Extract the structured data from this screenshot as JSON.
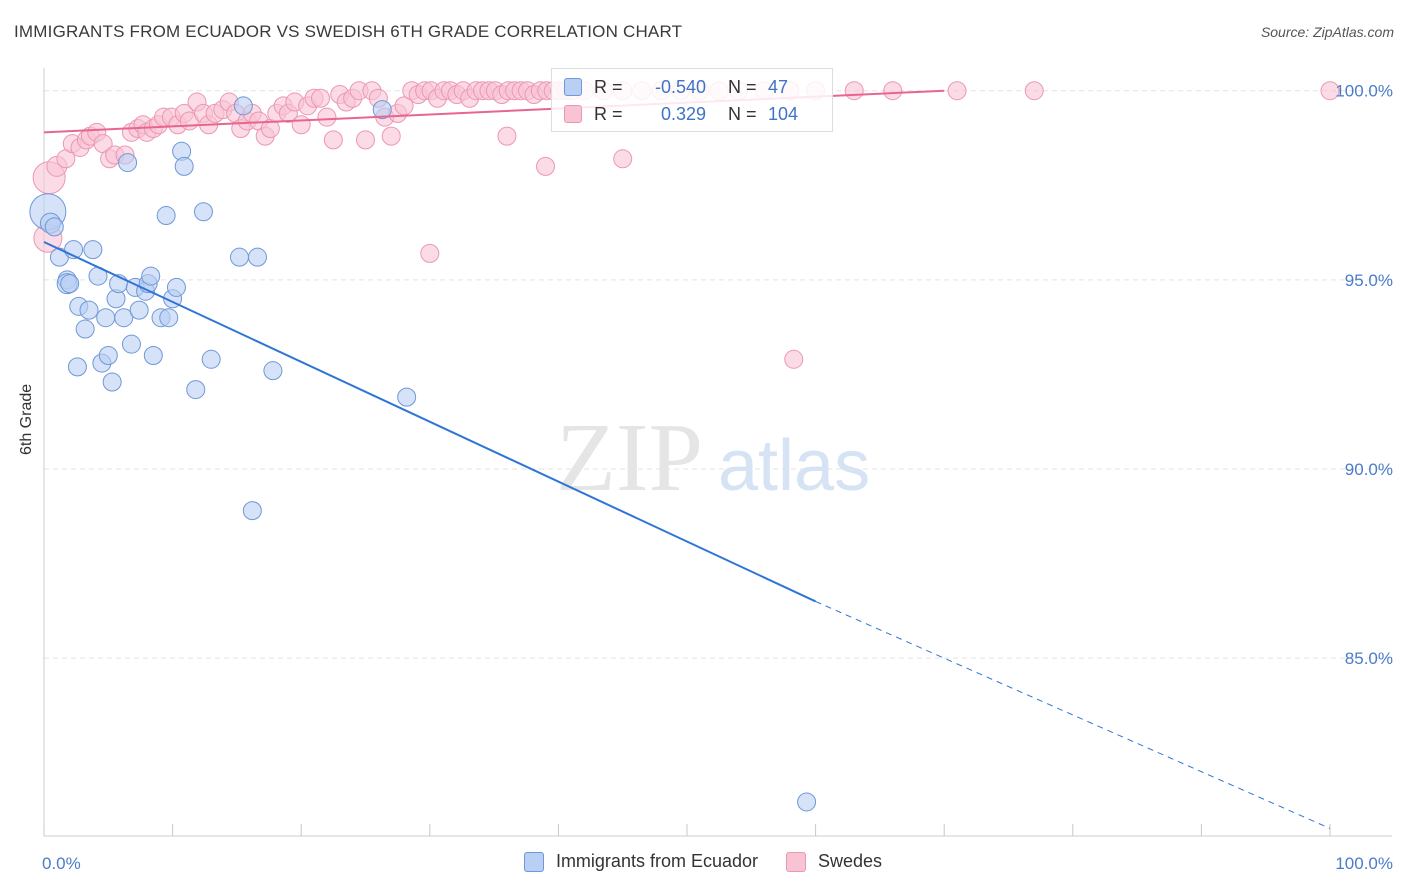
{
  "title": "IMMIGRANTS FROM ECUADOR VS SWEDISH 6TH GRADE CORRELATION CHART",
  "source": "Source: ZipAtlas.com",
  "watermark": {
    "zip": "ZIP",
    "atlas": "atlas"
  },
  "colors": {
    "blue_fill": "#b9cff3",
    "blue_stroke": "#6f98d8",
    "blue_line": "#2f75d6",
    "pink_fill": "#f8c3d3",
    "pink_stroke": "#ec97b2",
    "pink_line": "#e8668e",
    "grid": "#e3e3e3",
    "axis_text": "#4a7cc9"
  },
  "legend": {
    "rows": [
      {
        "r_label": "R =",
        "r_value": "-0.540",
        "n_label": "N =",
        "n_value": "47"
      },
      {
        "r_label": "R =",
        "r_value": "0.329",
        "n_label": "N =",
        "n_value": "104"
      }
    ]
  },
  "chart_data": {
    "type": "scatter",
    "xlabel": "",
    "ylabel": "6th Grade",
    "xlim": [
      0,
      100
    ],
    "ylim": [
      80.3,
      100.6
    ],
    "x_tick_labels": [
      {
        "value": 0,
        "label": "0.0%"
      },
      {
        "value": 100,
        "label": "100.0%"
      }
    ],
    "y_ticks": [
      {
        "value": 100,
        "label": "100.0%"
      },
      {
        "value": 95,
        "label": "95.0%"
      },
      {
        "value": 90,
        "label": "90.0%"
      },
      {
        "value": 85,
        "label": "85.0%"
      }
    ],
    "series": [
      {
        "name": "Immigrants from Ecuador",
        "color": "blue",
        "trend": {
          "x0": 0,
          "y0": 96.0,
          "x1": 60,
          "y1": 86.5,
          "dash_to_x": 100,
          "dash_to_y": 80.5
        },
        "points": [
          [
            0.3,
            96.8,
            18
          ],
          [
            0.5,
            96.5,
            10
          ],
          [
            1.2,
            95.6,
            9
          ],
          [
            1.8,
            95.0,
            9
          ],
          [
            1.8,
            94.9,
            10
          ],
          [
            2.3,
            95.8,
            9
          ],
          [
            2.6,
            92.7,
            9
          ],
          [
            2.7,
            94.3,
            9
          ],
          [
            3.2,
            93.7,
            9
          ],
          [
            3.5,
            94.2,
            9
          ],
          [
            3.8,
            95.8,
            9
          ],
          [
            4.2,
            95.1,
            9
          ],
          [
            4.5,
            92.8,
            9
          ],
          [
            4.8,
            94.0,
            9
          ],
          [
            5.0,
            93.0,
            9
          ],
          [
            5.3,
            92.3,
            9
          ],
          [
            5.6,
            94.5,
            9
          ],
          [
            5.8,
            94.9,
            9
          ],
          [
            6.2,
            94.0,
            9
          ],
          [
            6.5,
            98.1,
            9
          ],
          [
            6.8,
            93.3,
            9
          ],
          [
            7.1,
            94.8,
            9
          ],
          [
            7.4,
            94.2,
            9
          ],
          [
            7.9,
            94.7,
            9
          ],
          [
            8.1,
            94.9,
            9
          ],
          [
            8.3,
            95.1,
            9
          ],
          [
            8.5,
            93.0,
            9
          ],
          [
            9.1,
            94.0,
            9
          ],
          [
            9.5,
            96.7,
            9
          ],
          [
            9.7,
            94.0,
            9
          ],
          [
            10.0,
            94.5,
            9
          ],
          [
            10.3,
            94.8,
            9
          ],
          [
            10.7,
            98.4,
            9
          ],
          [
            10.9,
            98.0,
            9
          ],
          [
            11.8,
            92.1,
            9
          ],
          [
            12.4,
            96.8,
            9
          ],
          [
            13.0,
            92.9,
            9
          ],
          [
            15.2,
            95.6,
            9
          ],
          [
            15.5,
            99.6,
            9
          ],
          [
            16.2,
            88.9,
            9
          ],
          [
            16.6,
            95.6,
            9
          ],
          [
            17.8,
            92.6,
            9
          ],
          [
            26.3,
            99.5,
            9
          ],
          [
            28.2,
            91.9,
            9
          ],
          [
            59.3,
            81.2,
            9
          ],
          [
            0.8,
            96.4,
            9
          ],
          [
            2.0,
            94.9,
            9
          ]
        ]
      },
      {
        "name": "Swedes",
        "color": "pink",
        "trend": {
          "x0": 0,
          "y0": 98.9,
          "x1": 70,
          "y1": 100.0
        },
        "points": [
          [
            0.3,
            96.1,
            14
          ],
          [
            0.4,
            97.7,
            16
          ],
          [
            1.0,
            98.0,
            10
          ],
          [
            1.7,
            98.2,
            9
          ],
          [
            2.2,
            98.6,
            9
          ],
          [
            2.8,
            98.5,
            9
          ],
          [
            3.3,
            98.7,
            9
          ],
          [
            3.6,
            98.8,
            9
          ],
          [
            4.1,
            98.9,
            9
          ],
          [
            4.6,
            98.6,
            9
          ],
          [
            5.1,
            98.2,
            9
          ],
          [
            5.5,
            98.3,
            9
          ],
          [
            6.3,
            98.3,
            9
          ],
          [
            6.8,
            98.9,
            9
          ],
          [
            7.3,
            99.0,
            9
          ],
          [
            7.7,
            99.1,
            9
          ],
          [
            8.0,
            98.9,
            9
          ],
          [
            8.5,
            99.0,
            9
          ],
          [
            8.9,
            99.1,
            9
          ],
          [
            9.3,
            99.3,
            9
          ],
          [
            9.9,
            99.3,
            9
          ],
          [
            10.4,
            99.1,
            9
          ],
          [
            10.9,
            99.4,
            9
          ],
          [
            11.3,
            99.2,
            9
          ],
          [
            11.9,
            99.7,
            9
          ],
          [
            12.4,
            99.4,
            9
          ],
          [
            12.8,
            99.1,
            9
          ],
          [
            13.3,
            99.4,
            9
          ],
          [
            13.9,
            99.5,
            9
          ],
          [
            14.4,
            99.7,
            9
          ],
          [
            14.9,
            99.4,
            9
          ],
          [
            15.3,
            99.0,
            9
          ],
          [
            15.8,
            99.2,
            9
          ],
          [
            16.2,
            99.4,
            9
          ],
          [
            16.7,
            99.2,
            9
          ],
          [
            17.2,
            98.8,
            9
          ],
          [
            17.6,
            99.0,
            9
          ],
          [
            18.1,
            99.4,
            9
          ],
          [
            18.6,
            99.6,
            9
          ],
          [
            19.0,
            99.4,
            9
          ],
          [
            19.5,
            99.7,
            9
          ],
          [
            20.0,
            99.1,
            9
          ],
          [
            20.5,
            99.6,
            9
          ],
          [
            21.0,
            99.8,
            9
          ],
          [
            21.5,
            99.8,
            9
          ],
          [
            22.0,
            99.3,
            9
          ],
          [
            22.5,
            98.7,
            9
          ],
          [
            23.0,
            99.9,
            9
          ],
          [
            23.5,
            99.7,
            9
          ],
          [
            24.0,
            99.8,
            9
          ],
          [
            24.5,
            100.0,
            9
          ],
          [
            25.0,
            98.7,
            9
          ],
          [
            25.5,
            100.0,
            9
          ],
          [
            26.0,
            99.8,
            9
          ],
          [
            26.5,
            99.3,
            9
          ],
          [
            27.0,
            98.8,
            9
          ],
          [
            27.5,
            99.4,
            9
          ],
          [
            28.0,
            99.6,
            9
          ],
          [
            28.6,
            100.0,
            9
          ],
          [
            29.1,
            99.9,
            9
          ],
          [
            29.6,
            100.0,
            9
          ],
          [
            30.1,
            100.0,
            9
          ],
          [
            30.6,
            99.8,
            9
          ],
          [
            31.1,
            100.0,
            9
          ],
          [
            31.6,
            100.0,
            9
          ],
          [
            32.1,
            99.9,
            9
          ],
          [
            32.6,
            100.0,
            9
          ],
          [
            33.1,
            99.8,
            9
          ],
          [
            33.6,
            100.0,
            9
          ],
          [
            34.1,
            100.0,
            9
          ],
          [
            34.6,
            100.0,
            9
          ],
          [
            35.1,
            100.0,
            9
          ],
          [
            35.6,
            99.9,
            9
          ],
          [
            36.1,
            100.0,
            9
          ],
          [
            36.6,
            100.0,
            9
          ],
          [
            37.1,
            100.0,
            9
          ],
          [
            37.6,
            100.0,
            9
          ],
          [
            38.1,
            99.9,
            9
          ],
          [
            38.6,
            100.0,
            9
          ],
          [
            39.1,
            100.0,
            9
          ],
          [
            39.6,
            100.0,
            9
          ],
          [
            40.1,
            100.0,
            9
          ],
          [
            40.6,
            100.0,
            9
          ],
          [
            41.1,
            100.0,
            9
          ],
          [
            42.0,
            100.0,
            9
          ],
          [
            43.5,
            100.0,
            9
          ],
          [
            45.0,
            100.0,
            9
          ],
          [
            46.5,
            100.0,
            9
          ],
          [
            48.0,
            100.0,
            9
          ],
          [
            49.5,
            100.0,
            9
          ],
          [
            51.0,
            100.0,
            9
          ],
          [
            52.5,
            100.0,
            9
          ],
          [
            54.0,
            100.0,
            9
          ],
          [
            56.0,
            100.0,
            9
          ],
          [
            58.0,
            100.0,
            9
          ],
          [
            60.0,
            100.0,
            9
          ],
          [
            63.0,
            100.0,
            9
          ],
          [
            66.0,
            100.0,
            9
          ],
          [
            71.0,
            100.0,
            9
          ],
          [
            77.0,
            100.0,
            9
          ],
          [
            100.0,
            100.0,
            9
          ],
          [
            30.0,
            95.7,
            9
          ],
          [
            36.0,
            98.8,
            9
          ],
          [
            39.0,
            98.0,
            9
          ],
          [
            45.0,
            98.2,
            9
          ],
          [
            58.3,
            92.9,
            9
          ]
        ]
      }
    ]
  }
}
